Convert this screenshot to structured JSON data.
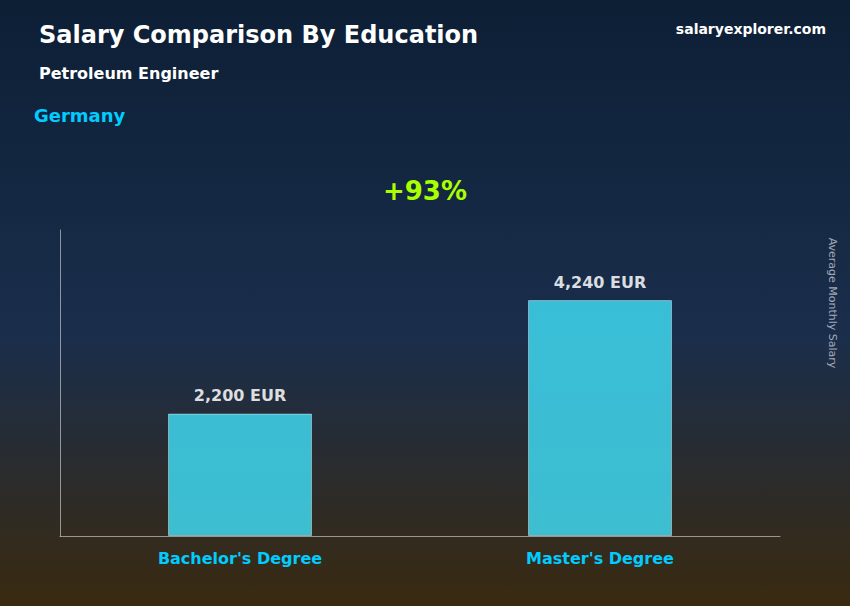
{
  "chart_data": {
    "type": "bar",
    "title": "Salary Comparison By Education",
    "subtitle": "Petroleum Engineer",
    "annotations": [
      "Germany",
      "salaryexplorer.com",
      "+93%",
      "Average Monthly Salary"
    ],
    "categories": [
      "Bachelor's Degree",
      "Master's Degree"
    ],
    "values": [
      2200,
      4240
    ],
    "value_labels": [
      "2,200 EUR",
      "4,240 EUR"
    ],
    "data_labels": true,
    "color": "#40d8f0",
    "ylim": [
      0,
      5500
    ],
    "grid": false,
    "tick_labels": "x"
  }
}
